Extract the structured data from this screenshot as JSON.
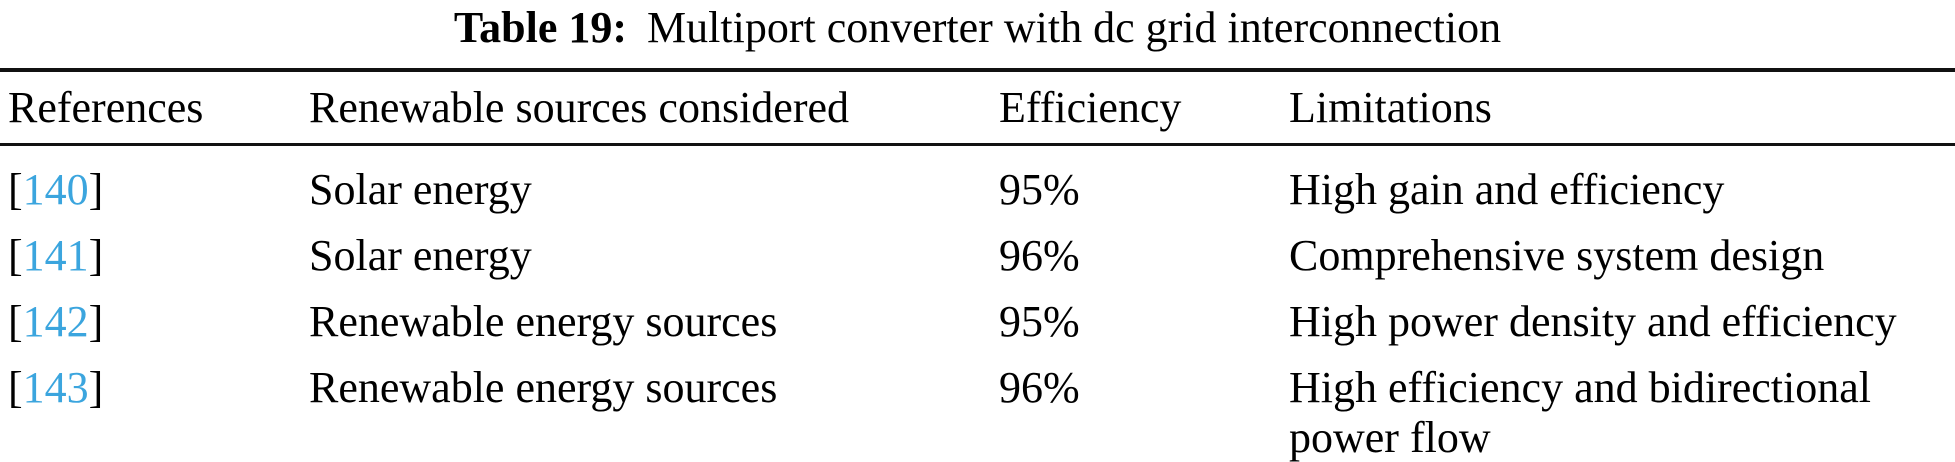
{
  "caption": {
    "label": "Table 19:",
    "title": "Multiport converter with dc grid interconnection"
  },
  "colors": {
    "reference_link": "#3BA5DE",
    "text": "#000000",
    "rule": "#111111"
  },
  "table": {
    "columns": [
      "References",
      "Renewable sources considered",
      "Efficiency",
      "Limitations"
    ],
    "bracket_open": "[",
    "bracket_close": "]",
    "rows": [
      {
        "reference": "140",
        "source": "Solar energy",
        "efficiency": "95%",
        "limitation": "High gain and efficiency"
      },
      {
        "reference": "141",
        "source": "Solar energy",
        "efficiency": "96%",
        "limitation": "Comprehensive system design"
      },
      {
        "reference": "142",
        "source": "Renewable energy sources",
        "efficiency": "95%",
        "limitation": "High power density and efficiency"
      },
      {
        "reference": "143",
        "source": "Renewable energy sources",
        "efficiency": "96%",
        "limitation": "High efficiency and bidirectional\npower flow"
      }
    ]
  }
}
